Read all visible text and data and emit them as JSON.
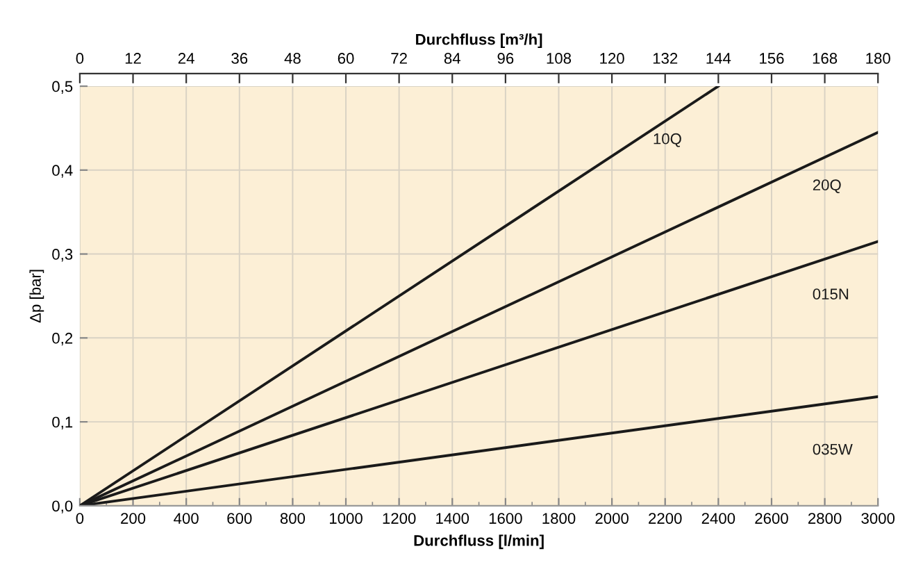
{
  "chart_data": {
    "type": "line",
    "xlabel": "Durchfluss [l/min]",
    "ylabel": "Δp [bar]",
    "x2label": "Durchfluss [m³/h]",
    "series": [
      {
        "name": "10Q",
        "color": "#1a1a1a",
        "x": [
          0,
          2400
        ],
        "values": [
          0,
          0.5
        ]
      },
      {
        "name": "20Q",
        "color": "#1a1a1a",
        "x": [
          0,
          3000
        ],
        "values": [
          0,
          0.445
        ]
      },
      {
        "name": "015N",
        "color": "#1a1a1a",
        "x": [
          0,
          3000
        ],
        "values": [
          0,
          0.315
        ]
      },
      {
        "name": "035W",
        "color": "#1a1a1a",
        "x": [
          0,
          3000
        ],
        "values": [
          0,
          0.13
        ]
      }
    ],
    "xlim": [
      0,
      3000
    ],
    "xticks": [
      0,
      {
        "value": 100,
        "label": null
      },
      200,
      {
        "value": 300,
        "label": null
      },
      400,
      {
        "value": 500,
        "label": null
      },
      600,
      {
        "value": 700,
        "label": null
      },
      800,
      {
        "value": 900,
        "label": null
      },
      1000,
      {
        "value": 1100,
        "label": null
      },
      1200,
      {
        "value": 1300,
        "label": null
      },
      1400,
      {
        "value": 1500,
        "label": null
      },
      1600,
      {
        "value": 1700,
        "label": null
      },
      1800,
      {
        "value": 1900,
        "label": null
      },
      2000,
      {
        "value": 2100,
        "label": null
      },
      2200,
      {
        "value": 2300,
        "label": null
      },
      2400,
      {
        "value": 2500,
        "label": null
      },
      2600,
      {
        "value": 2700,
        "label": null
      },
      2800,
      {
        "value": 2900,
        "label": null
      },
      3000
    ],
    "x2lim": [
      0,
      180
    ],
    "x2ticks": [
      0,
      12,
      24,
      36,
      48,
      60,
      72,
      84,
      96,
      108,
      120,
      132,
      144,
      156,
      168,
      180
    ],
    "ylim": [
      0,
      0.5
    ],
    "yticks": [
      {
        "value": 0,
        "label": "0,0"
      },
      {
        "value": 0.1,
        "label": "0,1"
      },
      {
        "value": 0.2,
        "label": "0,2"
      },
      {
        "value": 0.3,
        "label": "0,3"
      },
      {
        "value": 0.4,
        "label": "0,4"
      },
      {
        "value": 0.5,
        "label": "0,5"
      }
    ],
    "grid": true,
    "legend": false,
    "marker": "none",
    "line_style": "solid"
  }
}
